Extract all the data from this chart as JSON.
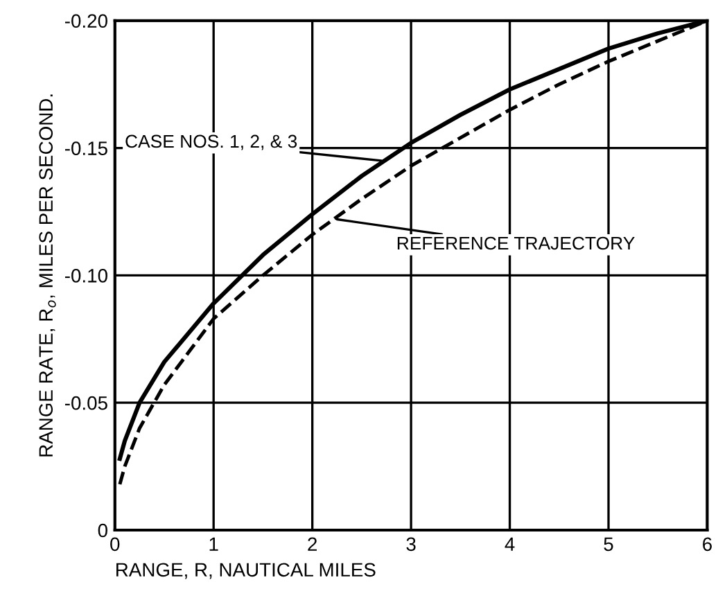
{
  "chart_data": {
    "type": "line",
    "xlabel": "RANGE, R, NAUTICAL MILES",
    "ylabel": "RANGE RATE, R$_{o}$, MILES PER SECOND.",
    "xlim": [
      0,
      6
    ],
    "xticks": [
      0,
      1,
      2,
      3,
      4,
      5,
      6
    ],
    "ylim": [
      0,
      -0.2
    ],
    "yticks": [
      0,
      {
        "value": -0.05,
        "label": "-0.05"
      },
      {
        "value": -0.1,
        "label": "-0.10"
      },
      {
        "value": -0.15,
        "label": "-0.15"
      },
      {
        "value": -0.2,
        "label": "-0.20"
      }
    ],
    "grid": true,
    "series": [
      {
        "color": "#000000",
        "line_style": "solid",
        "x": [
          0.05,
          0.1,
          0.25,
          0.5,
          1,
          1.5,
          2,
          2.5,
          3,
          3.5,
          4,
          4.5,
          5,
          5.5,
          6
        ],
        "values": [
          -0.028,
          -0.035,
          -0.05,
          -0.066,
          -0.089,
          -0.108,
          -0.124,
          -0.139,
          -0.152,
          -0.163,
          -0.173,
          -0.181,
          -0.189,
          -0.195,
          -0.2
        ]
      },
      {
        "color": "#000000",
        "line_style": "dashed",
        "x": [
          0.05,
          0.1,
          0.25,
          0.5,
          1,
          1.5,
          2,
          2.5,
          3,
          3.5,
          4,
          4.5,
          5,
          5.5,
          6
        ],
        "values": [
          -0.018,
          -0.025,
          -0.04,
          -0.057,
          -0.083,
          -0.1,
          -0.116,
          -0.13,
          -0.143,
          -0.154,
          -0.165,
          -0.175,
          -0.184,
          -0.192,
          -0.2
        ]
      }
    ],
    "annotations": [
      {
        "text": "CASE NOS. 1, 2, & 3",
        "x": 2.7,
        "y": -0.145
      },
      {
        "text": "REFERENCE TRAJECTORY",
        "x": 2.25,
        "y": -0.122
      }
    ]
  }
}
